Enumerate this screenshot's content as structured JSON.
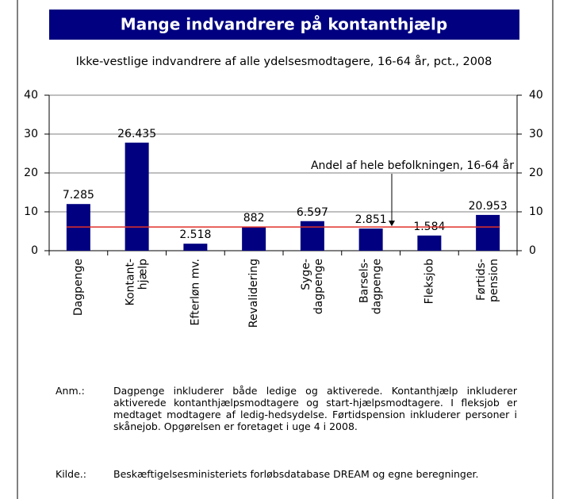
{
  "chart_data": {
    "type": "bar",
    "title": "Mange indvandrere på kontanthjælp",
    "subtitle": "Ikke-vestlige indvandrere af alle ydelsesmodtagere, 16-64 år, pct., 2008",
    "categories": [
      "Dagpenge",
      "Kontant-\nhjælp",
      "Efterløn mv.",
      "Revalidering",
      "Syge-\ndagpenge",
      "Barsels-\ndagpenge",
      "Fleksjob",
      "Førtids-\npension"
    ],
    "values": [
      12.0,
      27.8,
      1.8,
      6.1,
      7.6,
      5.7,
      3.9,
      9.2
    ],
    "data_labels": [
      "7.285",
      "26.435",
      "2.518",
      "882",
      "6.597",
      "2.851",
      "1.584",
      "20.953"
    ],
    "color": "#000080",
    "ylim": [
      0,
      40
    ],
    "yticks": [
      0,
      10,
      20,
      30,
      40
    ],
    "y2lim": [
      0,
      40
    ],
    "y2ticks": [
      0,
      10,
      20,
      30,
      40
    ],
    "grid": true,
    "reference_line": {
      "value": 6.1,
      "label": "Andel af hele befolkningen, 16-64 år",
      "color": "#e0302a"
    },
    "notes": [
      {
        "label": "Anm.:",
        "text": "Dagpenge inkluderer både ledige og aktiverede. Kontanthjælp inkluderer aktiverede kontanthjælpsmodtagere og start-hjælpsmodtagere. I fleksjob er medtaget modtagere af ledig-hedsydelse. Førtidspension inkluderer personer i skånejob. Opgørelsen er foretaget i uge 4 i 2008."
      },
      {
        "label": "Kilde.:",
        "text": "Beskæftigelsesministeriets forløbsdatabase DREAM og egne beregninger."
      }
    ]
  }
}
